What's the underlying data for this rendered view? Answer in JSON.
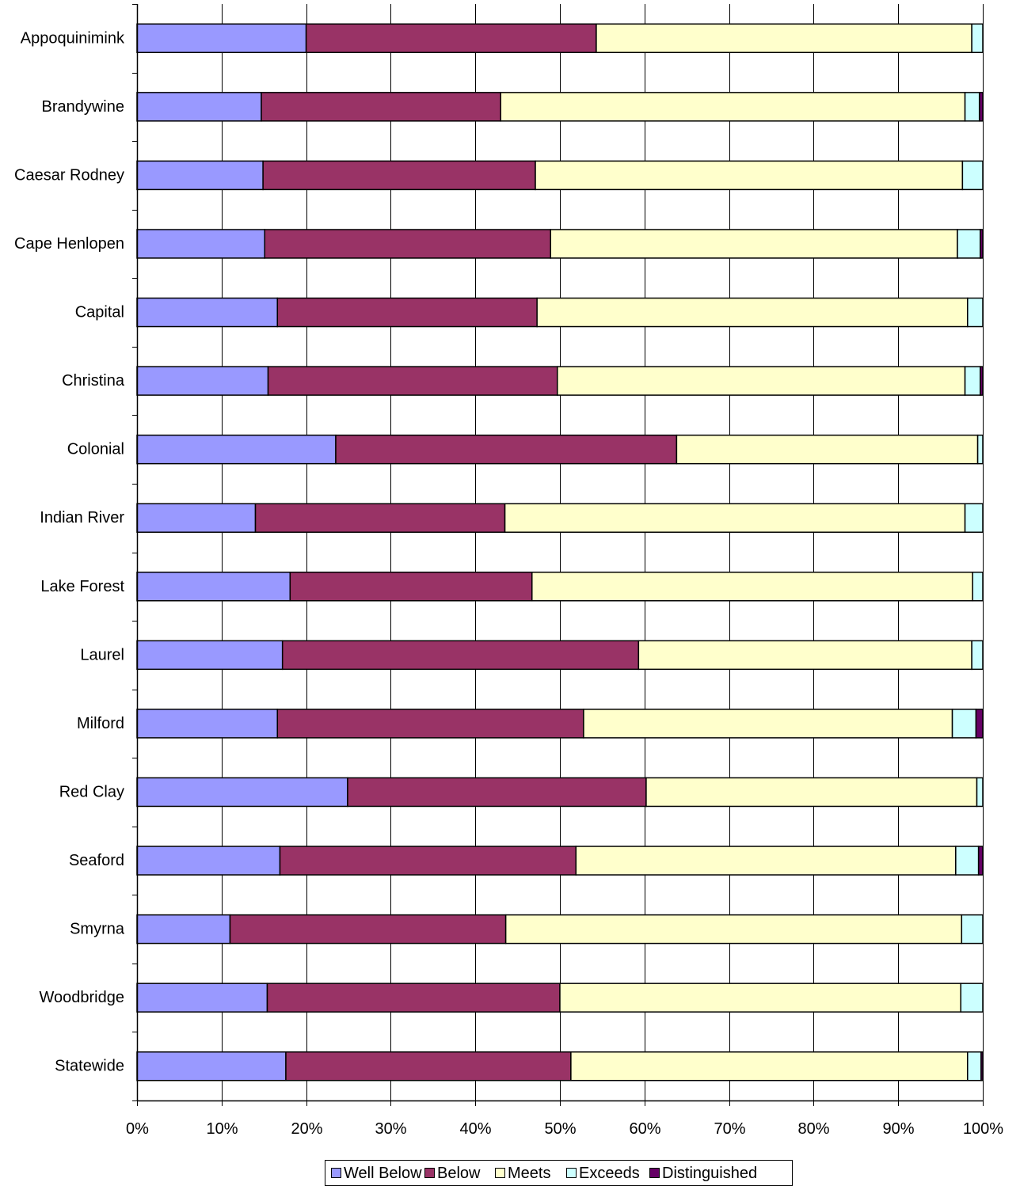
{
  "chart_data": {
    "type": "bar",
    "orientation": "horizontal",
    "stacked": "percent",
    "categories": [
      "Appoquinimink",
      "Brandywine",
      "Caesar Rodney",
      "Cape Henlopen",
      "Capital",
      "Christina",
      "Colonial",
      "Indian River",
      "Lake Forest",
      "Laurel",
      "Milford",
      "Red Clay",
      "Seaford",
      "Smyrna",
      "Woodbridge",
      "Statewide"
    ],
    "series": [
      {
        "name": "Well Below",
        "color": "#9999ff",
        "values": [
          20,
          14.7,
          14.9,
          15.1,
          16.6,
          15.5,
          23.5,
          14,
          18.1,
          17.2,
          16.6,
          24.9,
          16.9,
          11,
          15.4,
          17.6
        ]
      },
      {
        "name": "Below",
        "color": "#993366",
        "values": [
          34.3,
          28.3,
          32.2,
          33.8,
          30.7,
          34.2,
          40.3,
          29.5,
          28.6,
          42.1,
          36.2,
          35.3,
          35,
          32.6,
          34.6,
          33.7
        ]
      },
      {
        "name": "Meets",
        "color": "#ffffcc",
        "values": [
          44.4,
          54.9,
          50.5,
          48.1,
          50.9,
          48.2,
          35.6,
          54.4,
          52.1,
          39.4,
          43.6,
          39.1,
          44.9,
          53.9,
          47.4,
          46.9
        ]
      },
      {
        "name": "Exceeds",
        "color": "#ccffff",
        "values": [
          1.3,
          1.7,
          2.4,
          2.7,
          1.8,
          1.8,
          0.6,
          2.1,
          1.2,
          1.3,
          2.8,
          0.7,
          2.7,
          2.5,
          2.6,
          1.6
        ]
      },
      {
        "name": "Distinguished",
        "color": "#660066",
        "values": [
          0,
          0.4,
          0,
          0.3,
          0,
          0.3,
          0,
          0,
          0,
          0,
          0.8,
          0,
          0.5,
          0,
          0,
          0.2
        ]
      }
    ],
    "xlim": [
      0,
      100
    ],
    "x_ticks": [
      "0%",
      "10%",
      "20%",
      "30%",
      "40%",
      "50%",
      "60%",
      "70%",
      "80%",
      "90%",
      "100%"
    ],
    "grid": "vertical",
    "legend": "bottom",
    "title": "",
    "xlabel": "",
    "ylabel": ""
  }
}
